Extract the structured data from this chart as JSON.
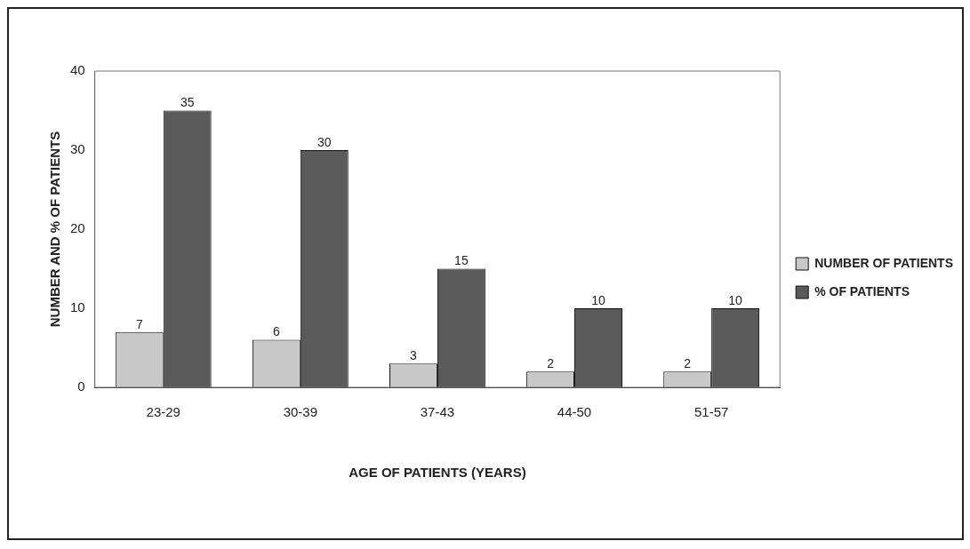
{
  "chart_data": {
    "type": "bar",
    "xlabel": "AGE OF PATIENTS (YEARS)",
    "ylabel": "NUMBER AND % OF PATIENTS",
    "categories": [
      "23-29",
      "30-39",
      "37-43",
      "44-50",
      "51-57"
    ],
    "series": [
      {
        "name": "NUMBER OF PATIENTS",
        "color": "#c8c8c8",
        "values": [
          7,
          6,
          3,
          2,
          2
        ]
      },
      {
        "name": "% OF PATIENTS",
        "color": "#5a5a5a",
        "values": [
          35,
          30,
          15,
          10,
          10
        ]
      }
    ],
    "ylim": [
      0,
      40
    ],
    "yticks": [
      0,
      10,
      20,
      30,
      40
    ],
    "grid": false,
    "legend": "right",
    "data_labels": true
  }
}
